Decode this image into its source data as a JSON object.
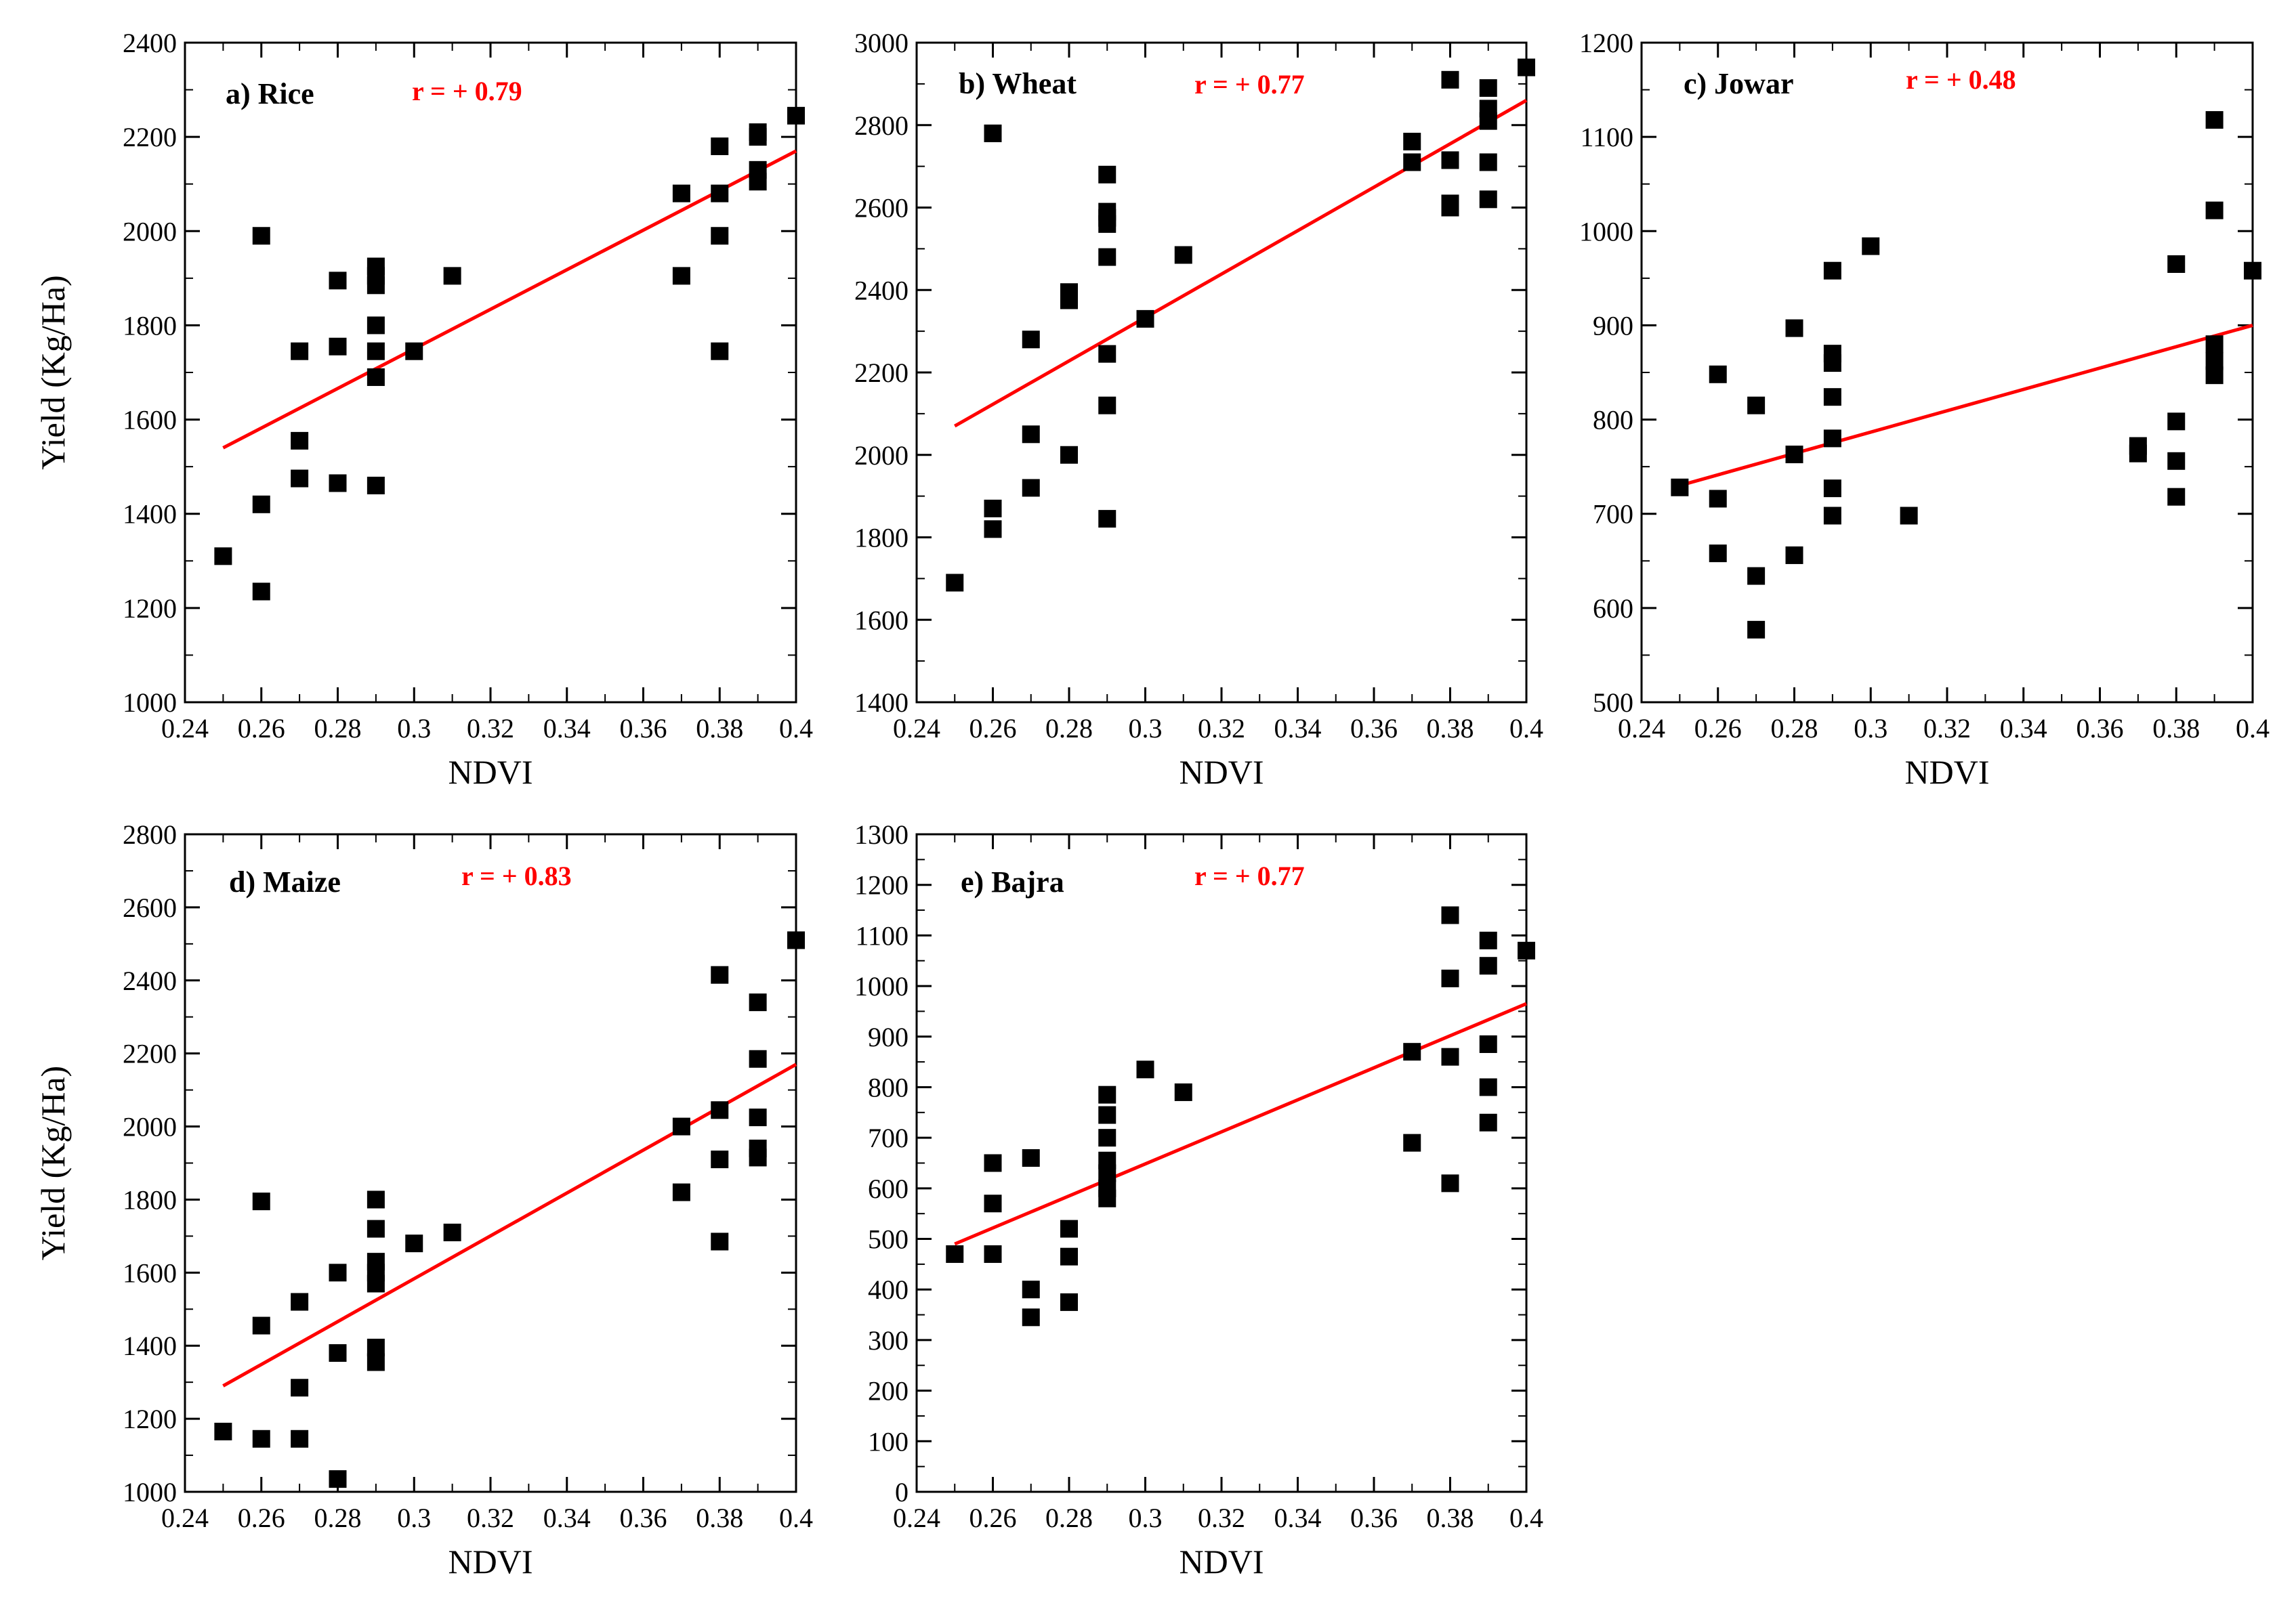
{
  "figure": {
    "x_axis_label": "NDVI",
    "y_axis_label": "Yield (Kg/Ha)"
  },
  "colors": {
    "points": "#000000",
    "regression_line": "#ff0000",
    "r_label": "#ff0000",
    "axes": "#000000"
  },
  "chart_data": [
    {
      "type": "scatter",
      "title": "a) Rice",
      "r_label": "r = + 0.79",
      "xlabel": "NDVI",
      "ylabel": "Yield (Kg/Ha)",
      "xlim": [
        0.24,
        0.4
      ],
      "ylim": [
        1000,
        2400
      ],
      "x_ticks": [
        "0.24",
        "0.26",
        "0.28",
        "0.3",
        "0.32",
        "0.34",
        "0.36",
        "0.38",
        "0.4"
      ],
      "y_ticks": [
        "1000",
        "1200",
        "1400",
        "1600",
        "1800",
        "2000",
        "2200",
        "2400"
      ],
      "show_y_label": true,
      "regression": {
        "x": [
          0.25,
          0.4
        ],
        "y": [
          1540,
          2170
        ]
      },
      "points": [
        [
          0.25,
          1310
        ],
        [
          0.26,
          1990
        ],
        [
          0.26,
          1420
        ],
        [
          0.26,
          1235
        ],
        [
          0.27,
          1745
        ],
        [
          0.27,
          1555
        ],
        [
          0.27,
          1475
        ],
        [
          0.28,
          1895
        ],
        [
          0.28,
          1755
        ],
        [
          0.28,
          1465
        ],
        [
          0.29,
          1925
        ],
        [
          0.29,
          1905
        ],
        [
          0.29,
          1885
        ],
        [
          0.29,
          1800
        ],
        [
          0.29,
          1745
        ],
        [
          0.29,
          1690
        ],
        [
          0.29,
          1460
        ],
        [
          0.3,
          1745
        ],
        [
          0.31,
          1905
        ],
        [
          0.37,
          2080
        ],
        [
          0.37,
          1905
        ],
        [
          0.38,
          2180
        ],
        [
          0.38,
          2080
        ],
        [
          0.38,
          1990
        ],
        [
          0.38,
          1745
        ],
        [
          0.39,
          2210
        ],
        [
          0.39,
          2200
        ],
        [
          0.39,
          2130
        ],
        [
          0.39,
          2105
        ],
        [
          0.4,
          2245
        ]
      ]
    },
    {
      "type": "scatter",
      "title": "b) Wheat",
      "r_label": "r = + 0.77",
      "xlabel": "NDVI",
      "ylabel": "",
      "xlim": [
        0.24,
        0.4
      ],
      "ylim": [
        1400,
        3000
      ],
      "x_ticks": [
        "0.24",
        "0.26",
        "0.28",
        "0.3",
        "0.32",
        "0.34",
        "0.36",
        "0.38",
        "0.4"
      ],
      "y_ticks": [
        "1400",
        "1600",
        "1800",
        "2000",
        "2200",
        "2400",
        "2600",
        "2800",
        "3000"
      ],
      "show_y_label": false,
      "regression": {
        "x": [
          0.25,
          0.4
        ],
        "y": [
          2070,
          2860
        ]
      },
      "points": [
        [
          0.25,
          1690
        ],
        [
          0.26,
          2780
        ],
        [
          0.26,
          1870
        ],
        [
          0.26,
          1820
        ],
        [
          0.27,
          2280
        ],
        [
          0.27,
          2050
        ],
        [
          0.27,
          1920
        ],
        [
          0.28,
          2395
        ],
        [
          0.28,
          2375
        ],
        [
          0.28,
          2000
        ],
        [
          0.29,
          2680
        ],
        [
          0.29,
          2590
        ],
        [
          0.29,
          2575
        ],
        [
          0.29,
          2560
        ],
        [
          0.29,
          2480
        ],
        [
          0.29,
          2245
        ],
        [
          0.29,
          2120
        ],
        [
          0.29,
          1845
        ],
        [
          0.3,
          2330
        ],
        [
          0.31,
          2485
        ],
        [
          0.37,
          2760
        ],
        [
          0.37,
          2710
        ],
        [
          0.38,
          2910
        ],
        [
          0.38,
          2715
        ],
        [
          0.38,
          2610
        ],
        [
          0.38,
          2600
        ],
        [
          0.39,
          2890
        ],
        [
          0.39,
          2840
        ],
        [
          0.39,
          2810
        ],
        [
          0.39,
          2710
        ],
        [
          0.39,
          2620
        ],
        [
          0.4,
          2940
        ]
      ]
    },
    {
      "type": "scatter",
      "title": "c) Jowar",
      "r_label": "r = + 0.48",
      "xlabel": "NDVI",
      "ylabel": "",
      "xlim": [
        0.24,
        0.4
      ],
      "ylim": [
        500,
        1200
      ],
      "x_ticks": [
        "0.24",
        "0.26",
        "0.28",
        "0.3",
        "0.32",
        "0.34",
        "0.36",
        "0.38",
        "0.4"
      ],
      "y_ticks": [
        "500",
        "600",
        "700",
        "800",
        "900",
        "1000",
        "1100",
        "1200"
      ],
      "show_y_label": false,
      "regression": {
        "x": [
          0.25,
          0.4
        ],
        "y": [
          730,
          900
        ]
      },
      "points": [
        [
          0.25,
          728
        ],
        [
          0.26,
          848
        ],
        [
          0.26,
          716
        ],
        [
          0.26,
          658
        ],
        [
          0.27,
          815
        ],
        [
          0.27,
          634
        ],
        [
          0.27,
          577
        ],
        [
          0.28,
          897
        ],
        [
          0.28,
          763
        ],
        [
          0.28,
          656
        ],
        [
          0.29,
          958
        ],
        [
          0.29,
          870
        ],
        [
          0.29,
          860
        ],
        [
          0.29,
          824
        ],
        [
          0.29,
          780
        ],
        [
          0.29,
          727
        ],
        [
          0.29,
          698
        ],
        [
          0.3,
          984
        ],
        [
          0.31,
          698
        ],
        [
          0.37,
          772
        ],
        [
          0.37,
          764
        ],
        [
          0.38,
          965
        ],
        [
          0.38,
          798
        ],
        [
          0.38,
          756
        ],
        [
          0.38,
          718
        ],
        [
          0.39,
          1118
        ],
        [
          0.39,
          1022
        ],
        [
          0.39,
          880
        ],
        [
          0.39,
          862
        ],
        [
          0.39,
          847
        ],
        [
          0.4,
          958
        ]
      ]
    },
    {
      "type": "scatter",
      "title": "d) Maize",
      "r_label": "r = + 0.83",
      "xlabel": "NDVI",
      "ylabel": "Yield (Kg/Ha)",
      "xlim": [
        0.24,
        0.4
      ],
      "ylim": [
        1000,
        2800
      ],
      "x_ticks": [
        "0.24",
        "0.26",
        "0.28",
        "0.3",
        "0.32",
        "0.34",
        "0.36",
        "0.38",
        "0.4"
      ],
      "y_ticks": [
        "1000",
        "1200",
        "1400",
        "1600",
        "1800",
        "2000",
        "2200",
        "2400",
        "2600",
        "2800"
      ],
      "show_y_label": true,
      "regression": {
        "x": [
          0.25,
          0.4
        ],
        "y": [
          1290,
          2170
        ]
      },
      "points": [
        [
          0.25,
          1165
        ],
        [
          0.26,
          1795
        ],
        [
          0.26,
          1455
        ],
        [
          0.26,
          1145
        ],
        [
          0.27,
          1520
        ],
        [
          0.27,
          1285
        ],
        [
          0.27,
          1145
        ],
        [
          0.28,
          1600
        ],
        [
          0.28,
          1380
        ],
        [
          0.28,
          1035
        ],
        [
          0.29,
          1800
        ],
        [
          0.29,
          1720
        ],
        [
          0.29,
          1630
        ],
        [
          0.29,
          1600
        ],
        [
          0.29,
          1570
        ],
        [
          0.29,
          1395
        ],
        [
          0.29,
          1355
        ],
        [
          0.3,
          1680
        ],
        [
          0.31,
          1710
        ],
        [
          0.37,
          2000
        ],
        [
          0.37,
          1820
        ],
        [
          0.38,
          2415
        ],
        [
          0.38,
          2045
        ],
        [
          0.38,
          1910
        ],
        [
          0.38,
          1685
        ],
        [
          0.39,
          2340
        ],
        [
          0.39,
          2185
        ],
        [
          0.39,
          2025
        ],
        [
          0.39,
          1940
        ],
        [
          0.39,
          1915
        ],
        [
          0.4,
          2510
        ]
      ]
    },
    {
      "type": "scatter",
      "title": "e) Bajra",
      "r_label": "r = + 0.77",
      "xlabel": "NDVI",
      "ylabel": "",
      "xlim": [
        0.24,
        0.4
      ],
      "ylim": [
        0,
        1300
      ],
      "x_ticks": [
        "0.24",
        "0.26",
        "0.28",
        "0.3",
        "0.32",
        "0.34",
        "0.36",
        "0.38",
        "0.4"
      ],
      "y_ticks": [
        "0",
        "100",
        "200",
        "300",
        "400",
        "500",
        "600",
        "700",
        "800",
        "900",
        "1000",
        "1100",
        "1200",
        "1300"
      ],
      "show_y_label": false,
      "regression": {
        "x": [
          0.25,
          0.4
        ],
        "y": [
          490,
          965
        ]
      },
      "points": [
        [
          0.25,
          470
        ],
        [
          0.26,
          650
        ],
        [
          0.26,
          570
        ],
        [
          0.26,
          470
        ],
        [
          0.27,
          660
        ],
        [
          0.27,
          400
        ],
        [
          0.27,
          345
        ],
        [
          0.28,
          520
        ],
        [
          0.28,
          465
        ],
        [
          0.28,
          375
        ],
        [
          0.29,
          785
        ],
        [
          0.29,
          745
        ],
        [
          0.29,
          700
        ],
        [
          0.29,
          655
        ],
        [
          0.29,
          630
        ],
        [
          0.29,
          600
        ],
        [
          0.29,
          580
        ],
        [
          0.3,
          835
        ],
        [
          0.31,
          790
        ],
        [
          0.37,
          870
        ],
        [
          0.37,
          690
        ],
        [
          0.38,
          1140
        ],
        [
          0.38,
          1015
        ],
        [
          0.38,
          860
        ],
        [
          0.38,
          610
        ],
        [
          0.39,
          1090
        ],
        [
          0.39,
          1040
        ],
        [
          0.39,
          885
        ],
        [
          0.39,
          800
        ],
        [
          0.39,
          730
        ],
        [
          0.4,
          1070
        ]
      ]
    }
  ]
}
